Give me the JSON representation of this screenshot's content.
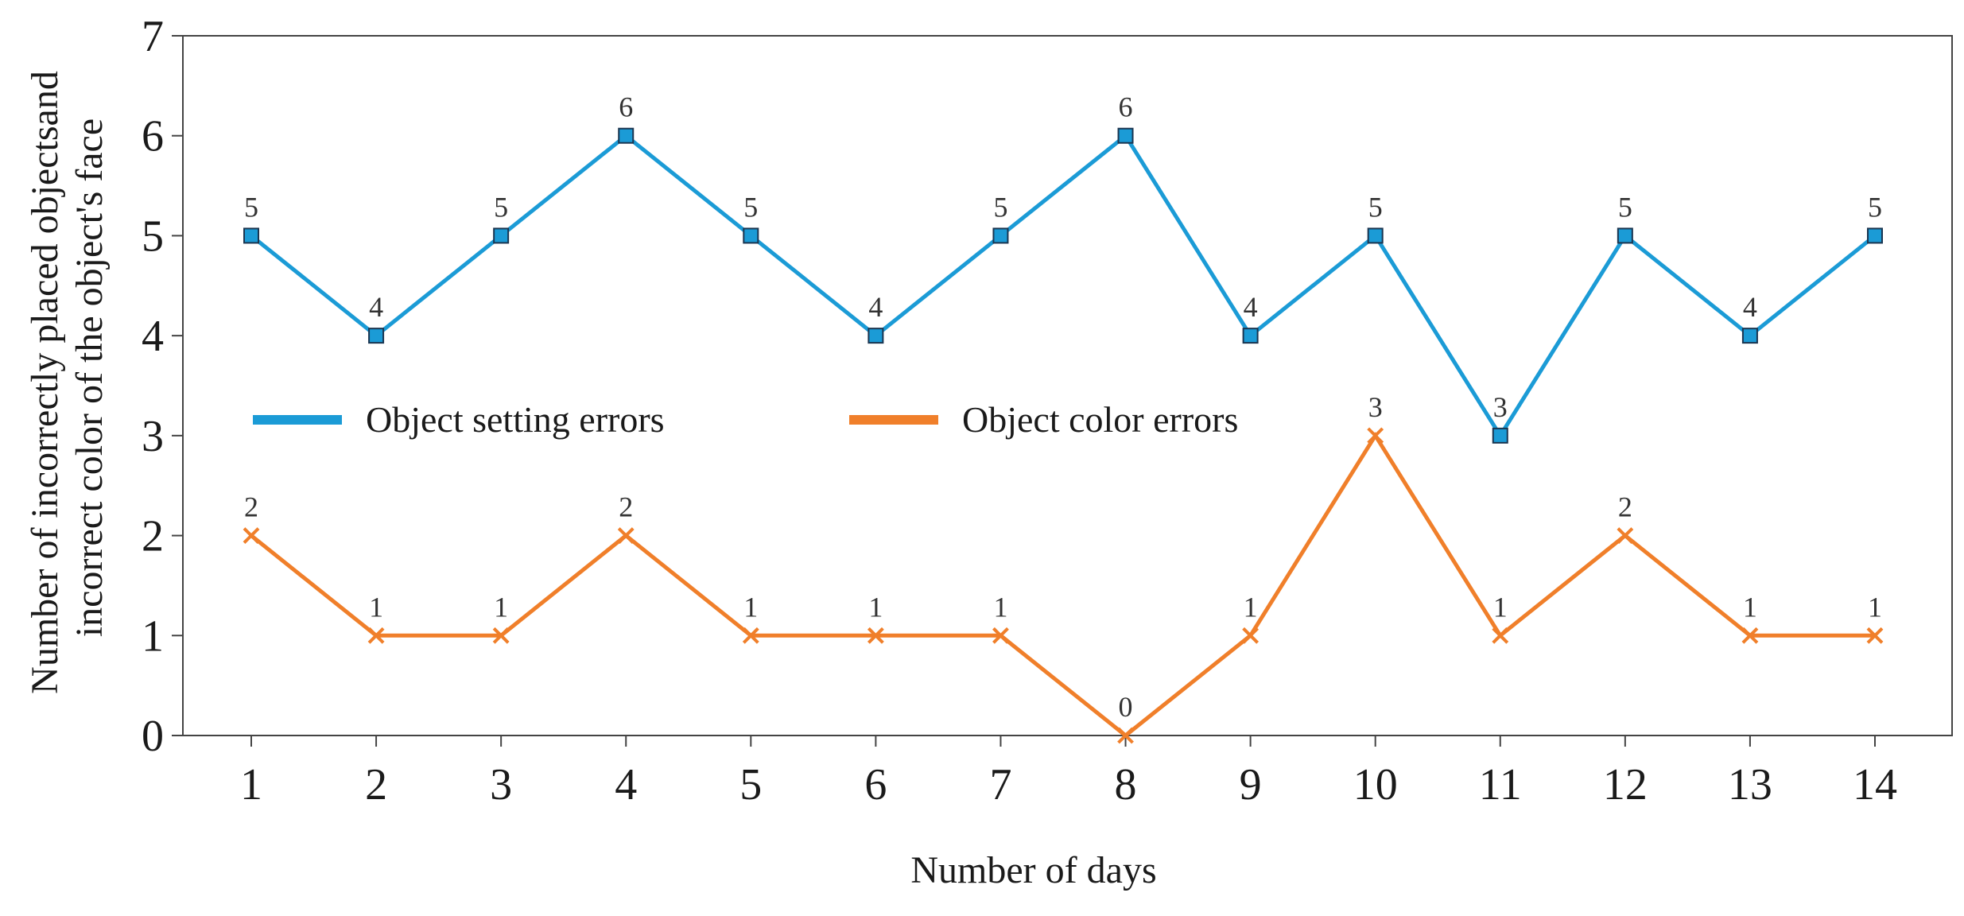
{
  "chart_data": {
    "type": "line",
    "xlabel": "Number of days",
    "ylabel_lines": [
      "Number of incorrectly placed objectsand",
      "incorrect color of the object's face"
    ],
    "x": [
      1,
      2,
      3,
      4,
      5,
      6,
      7,
      8,
      9,
      10,
      11,
      12,
      13,
      14
    ],
    "ylim": [
      0,
      7
    ],
    "yticks": [
      0,
      1,
      2,
      3,
      4,
      5,
      6,
      7
    ],
    "grid": false,
    "legend_position": "middle-left",
    "series": [
      {
        "name": "Object setting errors",
        "values": [
          5,
          4,
          5,
          6,
          5,
          4,
          5,
          6,
          4,
          5,
          3,
          5,
          4,
          5
        ],
        "color": "#1b9bd6",
        "marker": "square"
      },
      {
        "name": "Object color errors",
        "values": [
          2,
          1,
          1,
          2,
          1,
          1,
          1,
          0,
          1,
          3,
          1,
          2,
          1,
          1
        ],
        "color": "#f07f2a",
        "marker": "x"
      }
    ]
  }
}
